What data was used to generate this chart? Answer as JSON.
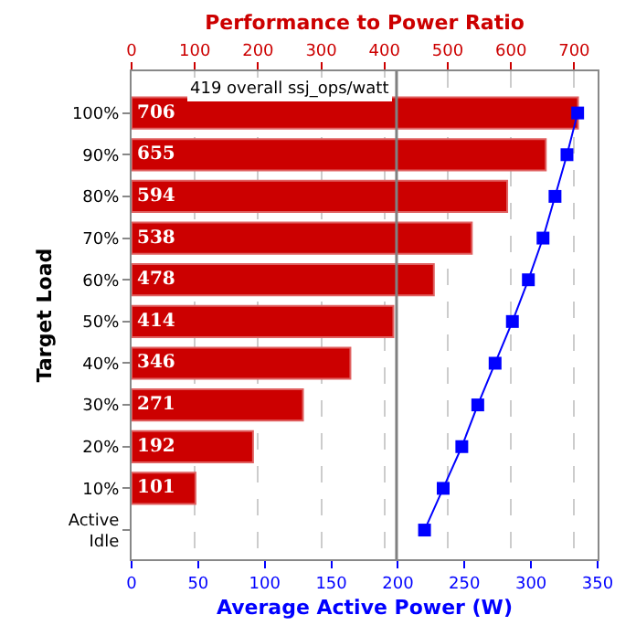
{
  "chart_data": {
    "type": "bar",
    "orientation": "horizontal",
    "ylabel": "Target Load",
    "categories": [
      "100%",
      "90%",
      "80%",
      "70%",
      "60%",
      "50%",
      "40%",
      "30%",
      "20%",
      "10%",
      "Active\nIdle"
    ],
    "series": [
      {
        "name": null,
        "axis": "x2",
        "color": "#cc0000",
        "values": [
          706,
          655,
          594,
          538,
          478,
          414,
          346,
          271,
          192,
          101,
          null
        ],
        "data_labels": true
      },
      {
        "name": null,
        "type": "line",
        "color": "#0000ff",
        "marker": "square",
        "values": [
          335,
          327,
          318,
          309,
          298,
          286,
          273,
          260,
          248,
          234,
          220
        ]
      }
    ],
    "xlabel": "Average Active Power (W)",
    "xlim": [
      0,
      350
    ],
    "xticks": [
      0,
      50,
      100,
      150,
      200,
      250,
      300,
      350
    ],
    "x2label": "Performance to Power Ratio",
    "x2lim": [
      0,
      737
    ],
    "x2ticks": [
      0,
      100,
      200,
      300,
      400,
      500,
      600,
      700
    ],
    "ref_lines": [
      {
        "axis": "x2",
        "value": 419,
        "label": "419 overall ssj_ops/watt",
        "color": "#808080"
      }
    ],
    "grid": "x2",
    "legend": false
  }
}
